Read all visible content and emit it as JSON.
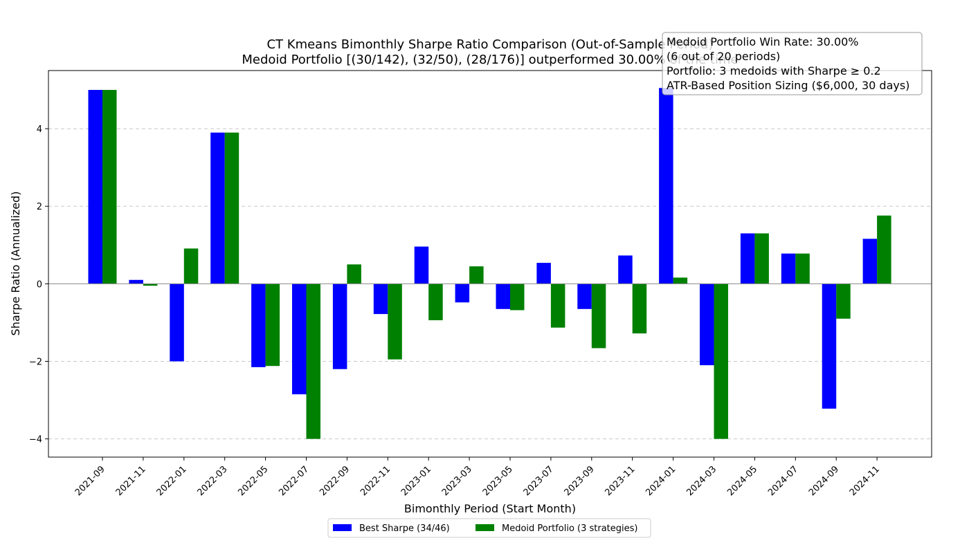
{
  "chart_data": {
    "type": "bar",
    "title": "CT Kmeans Bimonthly Sharpe Ratio Comparison (Out-of-Sample Period)",
    "subtitle": "Medoid Portfolio [(30/142), (32/50), (28/176)] outperformed 30.00% of the time",
    "xlabel": "Bimonthly Period (Start Month)",
    "ylabel": "Sharpe Ratio (Annualized)",
    "ylim": [
      -4.47,
      5.5
    ],
    "yticks": [
      -4,
      -2,
      0,
      2,
      4
    ],
    "ytick_labels": [
      "−4",
      "−2",
      "0",
      "2",
      "4"
    ],
    "grid": true,
    "legend_position": "bottom-center",
    "categories": [
      "2021-09",
      "2021-11",
      "2022-01",
      "2022-03",
      "2022-05",
      "2022-07",
      "2022-09",
      "2022-11",
      "2023-01",
      "2023-03",
      "2023-05",
      "2023-07",
      "2023-09",
      "2023-11",
      "2024-01",
      "2024-03",
      "2024-05",
      "2024-07",
      "2024-09",
      "2024-11"
    ],
    "series": [
      {
        "name": "Best Sharpe (34/46)",
        "color": "#0000ff",
        "values": [
          5.0,
          0.1,
          -2.0,
          3.9,
          -2.15,
          -2.85,
          -2.2,
          -0.78,
          0.96,
          -0.48,
          -0.65,
          0.54,
          -0.65,
          0.73,
          5.05,
          -2.1,
          1.3,
          0.78,
          -3.22,
          1.16
        ]
      },
      {
        "name": "Medoid Portfolio (3 strategies)",
        "color": "#008000",
        "values": [
          5.0,
          -0.05,
          0.91,
          3.9,
          -2.12,
          -4.0,
          0.5,
          -1.95,
          -0.94,
          0.45,
          -0.68,
          -1.13,
          -1.66,
          -1.28,
          0.16,
          -4.0,
          1.3,
          0.78,
          -0.9,
          1.76
        ]
      }
    ],
    "annotation_lines": [
      "Medoid Portfolio Win Rate: 30.00%",
      "(6 out of 20 periods)",
      "Portfolio: 3 medoids with Sharpe ≥ 0.2",
      "ATR-Based Position Sizing ($6,000, 30 days)"
    ]
  }
}
